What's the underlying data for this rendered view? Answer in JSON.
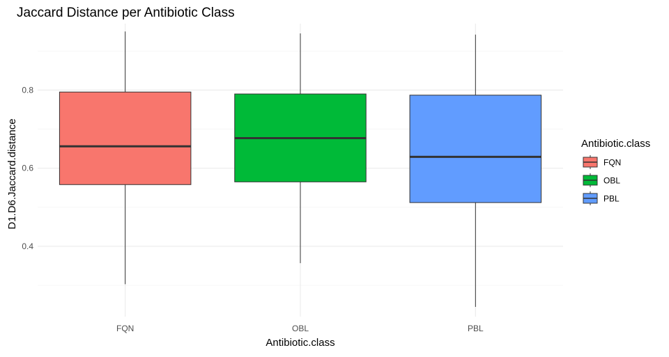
{
  "chart_data": {
    "type": "boxplot",
    "title": "Jaccard Distance per Antibiotic Class",
    "xlabel": "Antibiotic.class",
    "ylabel": "D1.D6.Jaccard.distance",
    "categories": [
      "FQN",
      "OBL",
      "PBL"
    ],
    "ylim": [
      0.22,
      0.97
    ],
    "yticks": [
      0.4,
      0.6,
      0.8
    ],
    "yticks_labels": [
      "0.4",
      "0.6",
      "0.8"
    ],
    "yminor": [
      0.3,
      0.5,
      0.7,
      0.9
    ],
    "grid": true,
    "legend": {
      "title": "Antibiotic.class",
      "position": "right",
      "entries": [
        "FQN",
        "OBL",
        "PBL"
      ]
    },
    "boxes": [
      {
        "category": "FQN",
        "min": 0.303,
        "q1": 0.558,
        "median": 0.656,
        "q3": 0.795,
        "max": 0.95,
        "color": "#F8766D"
      },
      {
        "category": "OBL",
        "min": 0.357,
        "q1": 0.565,
        "median": 0.677,
        "q3": 0.79,
        "max": 0.945,
        "color": "#00BA38"
      },
      {
        "category": "PBL",
        "min": 0.245,
        "q1": 0.512,
        "median": 0.629,
        "q3": 0.787,
        "max": 0.942,
        "color": "#619CFF"
      }
    ]
  }
}
